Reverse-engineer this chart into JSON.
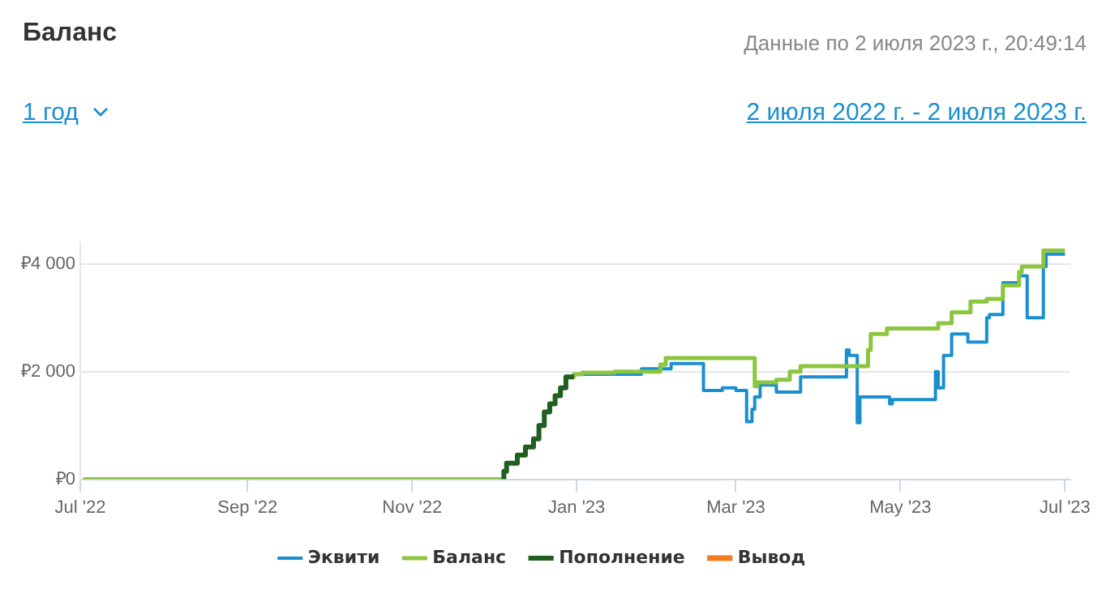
{
  "chart_data": {
    "type": "step",
    "title": "Баланс",
    "subtitle": "Данные по 2 июля 2023 г., 20:49:14",
    "annotations": [
      "1 год",
      "2 июля 2022 г. - 2 июля 2023 г."
    ],
    "xlim": [
      "2022-07-01",
      "2023-07-03"
    ],
    "xticks": [
      {
        "value": "2022-07-01",
        "label": "Jul '22"
      },
      {
        "value": "2022-09-01",
        "label": "Sep '22"
      },
      {
        "value": "2022-11-01",
        "label": "Nov '22"
      },
      {
        "value": "2023-01-01",
        "label": "Jan '23"
      },
      {
        "value": "2023-03-01",
        "label": "Mar '23"
      },
      {
        "value": "2023-05-01",
        "label": "May '23"
      },
      {
        "value": "2023-07-01",
        "label": "Jul '23"
      }
    ],
    "ylim": [
      0,
      4400
    ],
    "yticks": [
      {
        "value": 0,
        "label": "₽0"
      },
      {
        "value": 2000,
        "label": "₽2 000"
      },
      {
        "value": 4000,
        "label": "₽4 000"
      }
    ],
    "grid": "y",
    "legend": "bottom",
    "marker": "none",
    "line_style": "solid",
    "series": [
      {
        "name": "Эквити",
        "color": "#1a8fd0",
        "x": [
          "2022-12-31",
          "2023-01-10",
          "2023-01-25",
          "2023-02-05",
          "2023-02-17",
          "2023-02-24",
          "2023-03-01",
          "2023-03-05",
          "2023-03-07",
          "2023-03-08",
          "2023-03-10",
          "2023-03-16",
          "2023-03-25",
          "2023-03-27",
          "2023-04-11",
          "2023-04-12",
          "2023-04-15",
          "2023-04-16",
          "2023-04-19",
          "2023-04-27",
          "2023-04-28",
          "2023-05-03",
          "2023-05-14",
          "2023-05-15",
          "2023-05-17",
          "2023-05-20",
          "2023-05-26",
          "2023-06-02",
          "2023-06-03",
          "2023-06-08",
          "2023-06-14",
          "2023-06-17",
          "2023-06-18",
          "2023-06-23",
          "2023-06-24",
          "2023-07-01"
        ],
        "values": [
          1900,
          1950,
          1950,
          2050,
          2150,
          1650,
          1700,
          1650,
          1070,
          1300,
          1530,
          1750,
          1620,
          1900,
          1900,
          2400,
          2300,
          1050,
          1530,
          1530,
          1400,
          1480,
          1480,
          2000,
          1700,
          2300,
          2700,
          2550,
          3000,
          3060,
          3650,
          3780,
          3000,
          3000,
          3950,
          4180
        ]
      },
      {
        "name": "Баланс",
        "color": "#8cc63f",
        "x": [
          "2022-07-02",
          "2022-12-05",
          "2022-12-06",
          "2022-12-10",
          "2022-12-13",
          "2022-12-16",
          "2022-12-18",
          "2022-12-20",
          "2022-12-22",
          "2022-12-24",
          "2022-12-26",
          "2022-12-28",
          "2022-12-31",
          "2023-01-03",
          "2023-01-15",
          "2023-02-01",
          "2023-02-03",
          "2023-02-17",
          "2023-03-08",
          "2023-03-09",
          "2023-03-16",
          "2023-03-21",
          "2023-03-25",
          "2023-03-28",
          "2023-04-19",
          "2023-04-20",
          "2023-04-26",
          "2023-05-15",
          "2023-05-20",
          "2023-05-27",
          "2023-06-02",
          "2023-06-08",
          "2023-06-14",
          "2023-06-15",
          "2023-06-23",
          "2023-06-24",
          "2023-07-01"
        ],
        "values": [
          0,
          0,
          150,
          300,
          450,
          600,
          750,
          1000,
          1250,
          1400,
          1550,
          1700,
          1900,
          1950,
          1980,
          2000,
          2130,
          2250,
          2250,
          1730,
          1800,
          1850,
          2000,
          2100,
          2100,
          2400,
          2700,
          2800,
          2900,
          3100,
          3300,
          3350,
          3600,
          3850,
          3950,
          4250,
          4250
        ]
      },
      {
        "name": "Пополнение",
        "color": "#1f5f1f",
        "x": [
          "2022-12-05",
          "2022-12-06",
          "2022-12-10",
          "2022-12-13",
          "2022-12-16",
          "2022-12-18",
          "2022-12-20",
          "2022-12-22",
          "2022-12-24",
          "2022-12-26",
          "2022-12-28",
          "2022-12-31"
        ],
        "values": [
          0,
          150,
          300,
          450,
          600,
          750,
          1000,
          1250,
          1400,
          1550,
          1700,
          1900
        ]
      },
      {
        "name": "Вывод",
        "color": "#f47b20"
      }
    ]
  }
}
